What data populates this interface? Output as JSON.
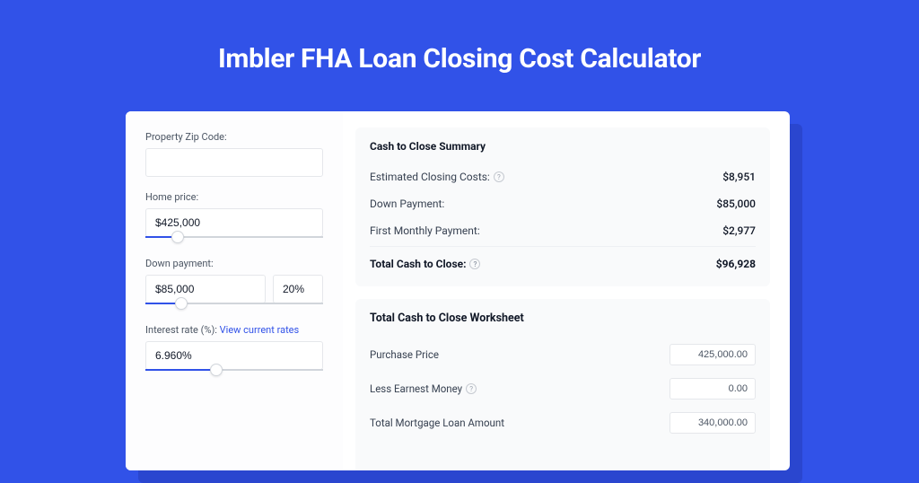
{
  "page": {
    "title": "Imbler FHA Loan Closing Cost Calculator",
    "background_color": "#3152e8",
    "accent_color": "#3152e8"
  },
  "inputs": {
    "zip": {
      "label": "Property Zip Code:",
      "value": ""
    },
    "home_price": {
      "label": "Home price:",
      "value": "$425,000",
      "slider_pct": 18
    },
    "down_payment": {
      "label": "Down payment:",
      "value": "$85,000",
      "pct_value": "20%",
      "slider_pct": 20
    },
    "interest_rate": {
      "label": "Interest rate (%):",
      "link_text": "View current rates",
      "value": "6.960%",
      "slider_pct": 40
    }
  },
  "summary": {
    "title": "Cash to Close Summary",
    "rows": [
      {
        "label": "Estimated Closing Costs:",
        "help": true,
        "value": "$8,951"
      },
      {
        "label": "Down Payment:",
        "help": false,
        "value": "$85,000"
      },
      {
        "label": "First Monthly Payment:",
        "help": false,
        "value": "$2,977"
      }
    ],
    "total": {
      "label": "Total Cash to Close:",
      "help": true,
      "value": "$96,928"
    }
  },
  "worksheet": {
    "title": "Total Cash to Close Worksheet",
    "rows": [
      {
        "label": "Purchase Price",
        "help": false,
        "value": "425,000.00"
      },
      {
        "label": "Less Earnest Money",
        "help": true,
        "value": "0.00"
      },
      {
        "label": "Total Mortgage Loan Amount",
        "help": false,
        "value": "340,000.00"
      }
    ]
  }
}
